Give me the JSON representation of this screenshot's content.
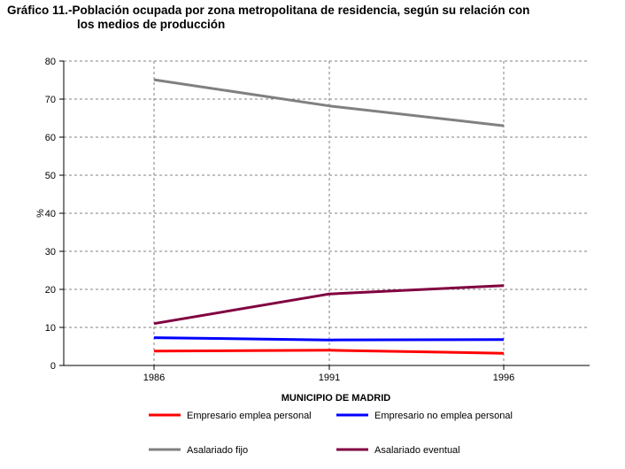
{
  "title_line1": "Gráfico 11.-Población ocupada por zona metropolitana de residencia, según su relación con",
  "title_line2": "los medios de producción",
  "chart_data": {
    "type": "line",
    "title": "Gráfico 11.-Población ocupada por zona metropolitana de residencia, según su relación con los medios de producción",
    "x": [
      "1986",
      "1991",
      "1996"
    ],
    "xlabel": "MUNICIPIO DE MADRID",
    "ylabel": "%",
    "ylim": [
      0,
      80
    ],
    "yticks": [
      "0",
      "10",
      "20",
      "30",
      "40",
      "50",
      "60",
      "70",
      "80"
    ],
    "grid": true,
    "legend_position": "bottom",
    "series": [
      {
        "name": "Empresario emplea personal",
        "color": "#ff0000",
        "values": [
          3.8,
          4.0,
          3.2
        ]
      },
      {
        "name": "Empresario no emplea personal",
        "color": "#0000ff",
        "values": [
          7.3,
          6.7,
          6.8
        ]
      },
      {
        "name": "Asalariado fijo",
        "color": "#808080",
        "values": [
          75.1,
          68.2,
          63.0
        ]
      },
      {
        "name": "Asalariado eventual",
        "color": "#800040",
        "values": [
          11.0,
          18.8,
          21.0
        ]
      }
    ]
  }
}
